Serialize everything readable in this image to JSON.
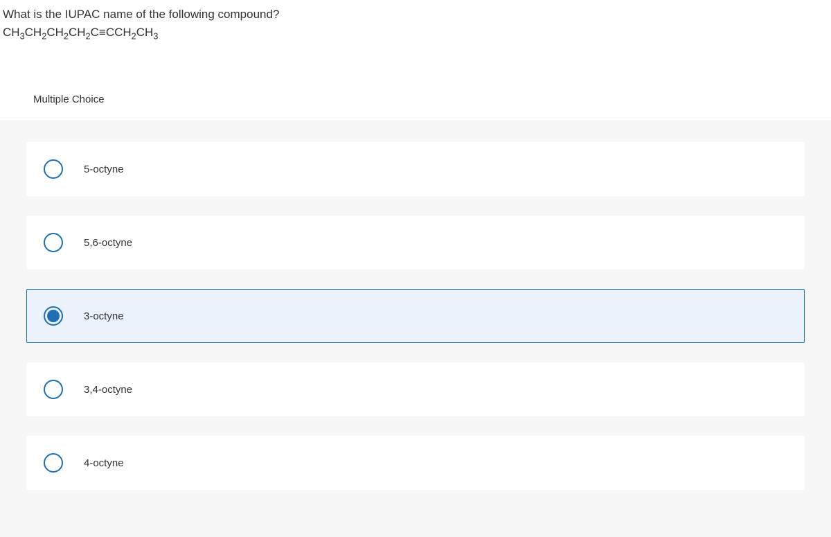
{
  "question": {
    "prompt_line1": "What is the IUPAC name of the following compound?",
    "formula_display": "CH3CH2CH2CH2C≡CCH2CH3"
  },
  "section_label": "Multiple Choice",
  "options": [
    {
      "label": "5-octyne",
      "selected": false
    },
    {
      "label": "5,6-octyne",
      "selected": false
    },
    {
      "label": "3-octyne",
      "selected": true
    },
    {
      "label": "3,4-octyne",
      "selected": false
    },
    {
      "label": "4-octyne",
      "selected": false
    }
  ],
  "colors": {
    "accent": "#1f6fb2",
    "selected_bg": "#eaf3fb",
    "page_bg": "#ffffff",
    "panel_bg": "#f7f7f7",
    "text": "#333333"
  }
}
